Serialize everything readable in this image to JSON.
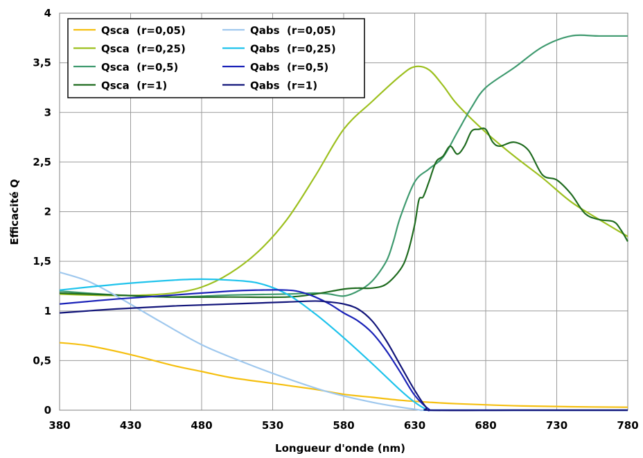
{
  "chart_data": {
    "type": "line",
    "xlabel": "Longueur d'onde  (nm)",
    "ylabel": "Efficacité Q",
    "xlim": [
      380,
      780
    ],
    "ylim": [
      0,
      4
    ],
    "xticks": [
      "380",
      "430",
      "480",
      "530",
      "580",
      "630",
      "680",
      "730",
      "780"
    ],
    "yticks": [
      "0",
      "0,5",
      "1",
      "1,5",
      "2",
      "2,5",
      "3",
      "3,5",
      "4"
    ],
    "grid": true,
    "legend_position": "top-left",
    "series": [
      {
        "name": "Qsca  (r=0,05)",
        "color": "#f5bf0f",
        "x": [
          380,
          400,
          430,
          460,
          480,
          500,
          530,
          560,
          580,
          600,
          620,
          640,
          660,
          700,
          740,
          780
        ],
        "y": [
          0.68,
          0.65,
          0.56,
          0.45,
          0.39,
          0.33,
          0.27,
          0.21,
          0.16,
          0.13,
          0.1,
          0.08,
          0.065,
          0.045,
          0.035,
          0.03
        ]
      },
      {
        "name": "Qsca  (r=0,25)",
        "color": "#9dc01f",
        "x": [
          380,
          400,
          420,
          440,
          460,
          480,
          500,
          520,
          540,
          560,
          580,
          600,
          620,
          630,
          640,
          650,
          660,
          680,
          700,
          720,
          740,
          760,
          780
        ],
        "y": [
          1.17,
          1.16,
          1.155,
          1.16,
          1.18,
          1.24,
          1.38,
          1.6,
          1.92,
          2.36,
          2.83,
          3.11,
          3.37,
          3.46,
          3.43,
          3.27,
          3.08,
          2.8,
          2.56,
          2.34,
          2.1,
          1.92,
          1.75
        ]
      },
      {
        "name": "Qsca  (r=0,5)",
        "color": "#3f9a6f",
        "x": [
          380,
          420,
          460,
          500,
          540,
          560,
          570,
          580,
          590,
          600,
          610,
          615,
          620,
          630,
          640,
          650,
          660,
          670,
          680,
          700,
          720,
          740,
          760,
          780
        ],
        "y": [
          1.2,
          1.16,
          1.14,
          1.16,
          1.17,
          1.18,
          1.17,
          1.15,
          1.2,
          1.3,
          1.5,
          1.7,
          1.95,
          2.3,
          2.43,
          2.55,
          2.8,
          3.05,
          3.25,
          3.45,
          3.66,
          3.77,
          3.77,
          3.77
        ]
      },
      {
        "name": "Qsca  (r=1)",
        "color": "#1f6b1f",
        "x": [
          380,
          420,
          460,
          500,
          540,
          560,
          580,
          590,
          600,
          610,
          620,
          625,
          630,
          633,
          636,
          640,
          645,
          650,
          655,
          660,
          665,
          670,
          675,
          680,
          685,
          690,
          700,
          710,
          720,
          730,
          740,
          750,
          760,
          770,
          775,
          780
        ],
        "y": [
          1.18,
          1.16,
          1.14,
          1.14,
          1.14,
          1.17,
          1.22,
          1.23,
          1.23,
          1.27,
          1.42,
          1.58,
          1.87,
          2.12,
          2.15,
          2.3,
          2.5,
          2.56,
          2.66,
          2.58,
          2.66,
          2.81,
          2.83,
          2.83,
          2.7,
          2.66,
          2.7,
          2.62,
          2.37,
          2.32,
          2.18,
          1.98,
          1.92,
          1.9,
          1.82,
          1.7
        ]
      },
      {
        "name": "Qabs  (r=0,05)",
        "color": "#9fc8ee",
        "x": [
          380,
          400,
          420,
          450,
          480,
          510,
          540,
          570,
          600,
          620,
          630,
          635,
          640,
          700,
          780
        ],
        "y": [
          1.39,
          1.3,
          1.15,
          0.9,
          0.66,
          0.48,
          0.32,
          0.18,
          0.08,
          0.03,
          0.01,
          0.0,
          0.0,
          0.0,
          0.0
        ]
      },
      {
        "name": "Qabs  (r=0,25)",
        "color": "#1ec3ec",
        "x": [
          380,
          400,
          430,
          460,
          480,
          500,
          520,
          540,
          560,
          580,
          600,
          620,
          630,
          638,
          642,
          700,
          780
        ],
        "y": [
          1.21,
          1.24,
          1.28,
          1.31,
          1.32,
          1.31,
          1.28,
          1.17,
          0.97,
          0.73,
          0.47,
          0.2,
          0.08,
          0.01,
          0.0,
          0.0,
          0.0
        ]
      },
      {
        "name": "Qabs  (r=0,5)",
        "color": "#1a22b8",
        "x": [
          380,
          420,
          460,
          500,
          520,
          540,
          550,
          560,
          570,
          580,
          590,
          600,
          610,
          620,
          630,
          640,
          645,
          700,
          780
        ],
        "y": [
          1.07,
          1.12,
          1.16,
          1.2,
          1.21,
          1.21,
          1.19,
          1.14,
          1.07,
          0.98,
          0.9,
          0.78,
          0.6,
          0.38,
          0.15,
          0.01,
          0.0,
          0.0,
          0.0
        ]
      },
      {
        "name": "Qabs  (r=1)",
        "color": "#12157a",
        "x": [
          380,
          420,
          460,
          500,
          540,
          560,
          570,
          580,
          590,
          600,
          610,
          620,
          630,
          638,
          642,
          700,
          780
        ],
        "y": [
          0.98,
          1.02,
          1.05,
          1.07,
          1.09,
          1.1,
          1.09,
          1.07,
          1.02,
          0.9,
          0.7,
          0.45,
          0.2,
          0.03,
          0.0,
          0.0,
          0.0
        ]
      }
    ]
  }
}
